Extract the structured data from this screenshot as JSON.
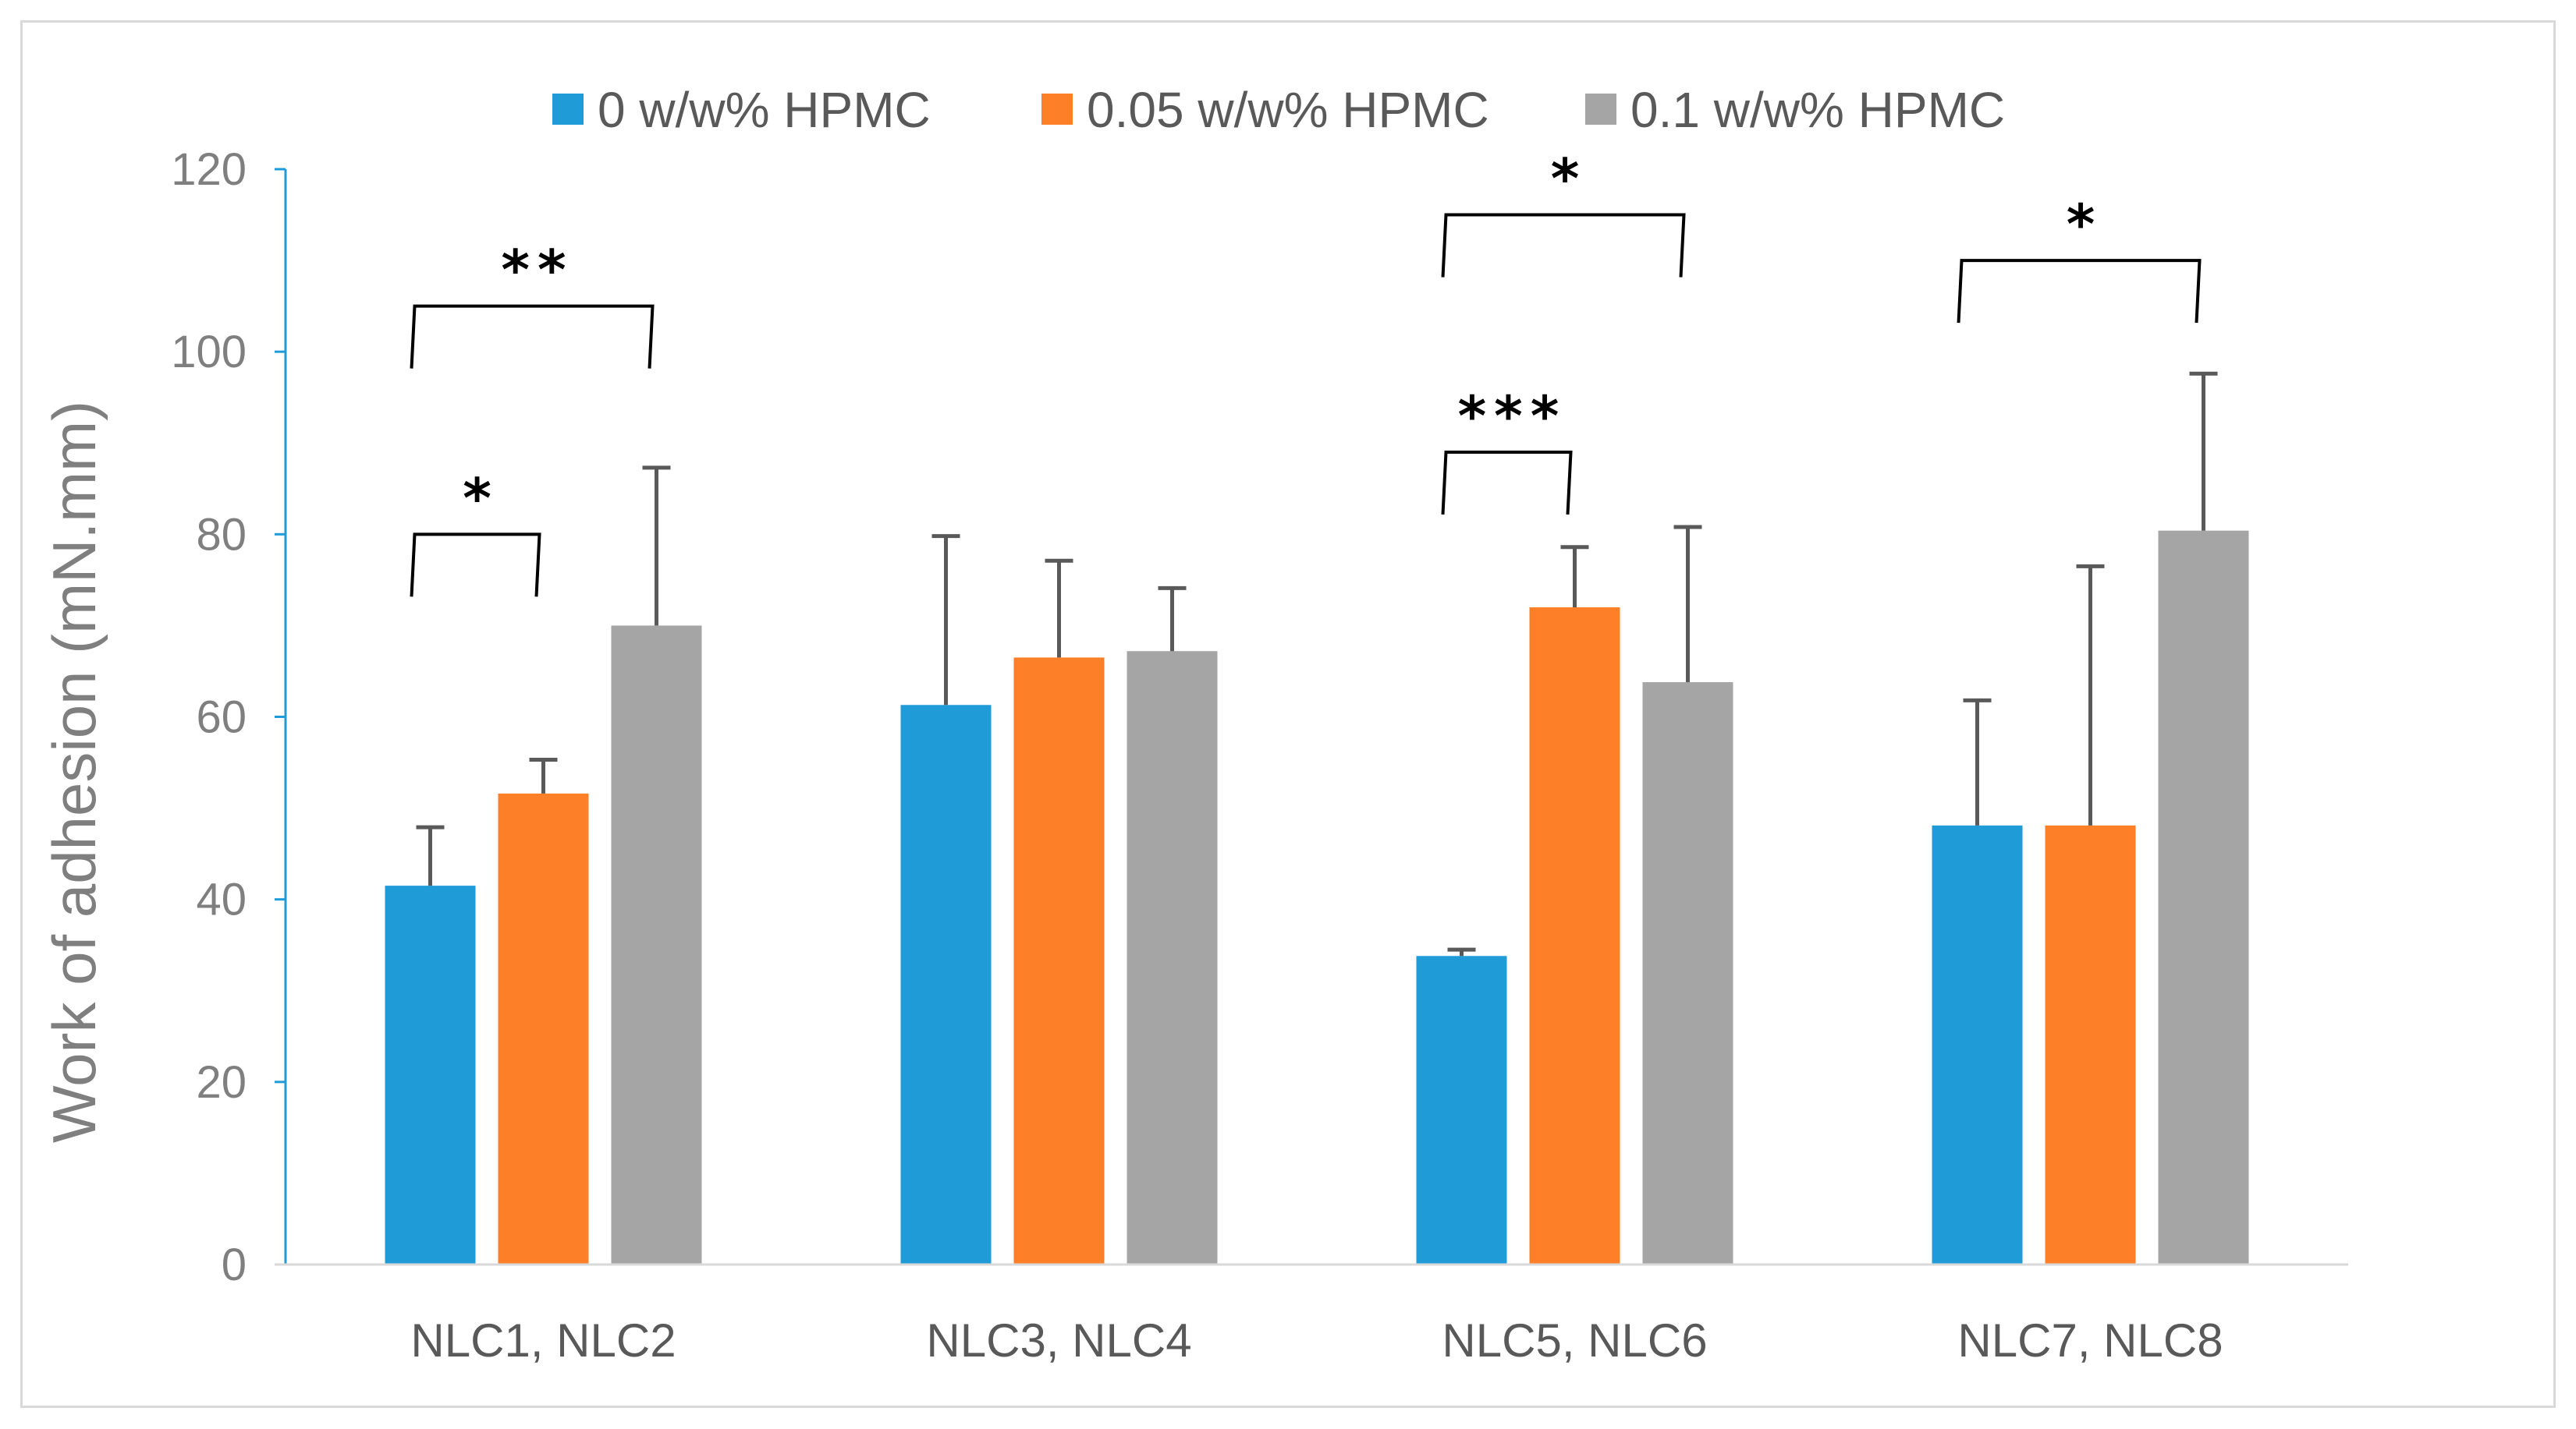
{
  "chart_data": {
    "type": "bar",
    "title": "",
    "xlabel": "",
    "ylabel": "Work of adhesion (mN.mm)",
    "ylim": [
      0,
      120
    ],
    "yticks": [
      "0",
      "20",
      "40",
      "60",
      "80",
      "100",
      "120"
    ],
    "grid": false,
    "legend_position": "top-center",
    "categories": [
      "NLC1, NLC2",
      "NLC3, NLC4",
      "NLC5, NLC6",
      "NLC7, NLC8"
    ],
    "series": [
      {
        "name": "0 w/w% HPMC",
        "color": "#1f9bd7",
        "values": [
          41.5,
          61.3,
          33.8,
          48.1
        ],
        "errors": [
          6.4,
          18.5,
          0.7,
          13.7
        ]
      },
      {
        "name": "0.05 w/w% HPMC",
        "color": "#fd7f28",
        "values": [
          51.6,
          66.5,
          72.0,
          48.1
        ],
        "errors": [
          3.7,
          10.6,
          6.6,
          28.4
        ]
      },
      {
        "name": "0.1 w/w% HPMC",
        "color": "#a5a5a5",
        "values": [
          70.0,
          67.2,
          63.8,
          80.4
        ],
        "errors": [
          17.3,
          6.9,
          17.0,
          17.2
        ]
      }
    ],
    "significance": [
      {
        "label": "*",
        "group": 0,
        "from_series": 0,
        "to_series": 1,
        "level": 80
      },
      {
        "label": "**",
        "group": 0,
        "from_series": 0,
        "to_series": 2,
        "level": 105
      },
      {
        "label": "***",
        "group": 2,
        "from_series": 0,
        "to_series": 1,
        "level": 89
      },
      {
        "label": "*",
        "group": 2,
        "from_series": 0,
        "to_series": 2,
        "level": 115
      },
      {
        "label": "*",
        "group": 3,
        "from_series": 0,
        "to_series": 2,
        "level": 110
      }
    ],
    "axis_color": "#1f9bd7",
    "error_bar_color": "#595959"
  }
}
